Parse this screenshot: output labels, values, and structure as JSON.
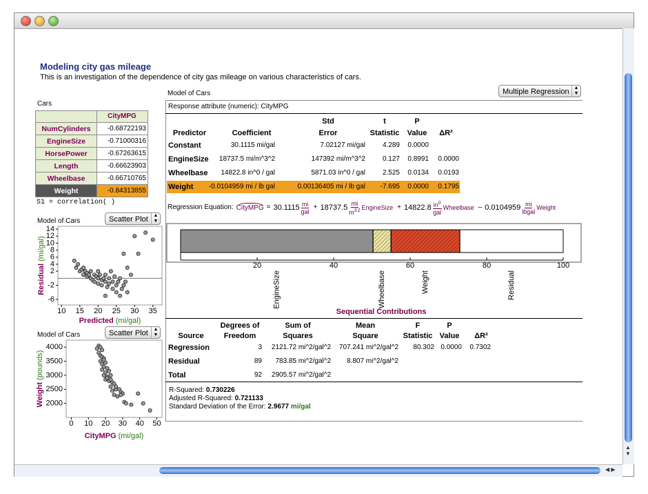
{
  "header": {
    "title": "Modeling city gas mileage",
    "subtitle": "This is an investigation of the dependence of city gas mileage on various characteristics of cars."
  },
  "cars_table": {
    "title": "Cars",
    "column": "CityMPG",
    "selected_row": 5,
    "rows": [
      [
        "NumCylinders",
        -0.68722193
      ],
      [
        "EngineSize",
        -0.71000316
      ],
      [
        "HorsePower",
        -0.67263615
      ],
      [
        "Length",
        -0.66623903
      ],
      [
        "Wheelbase",
        -0.66710765
      ],
      [
        "Weight",
        -0.84313855
      ]
    ],
    "formula": "S1 = correlation(  )"
  },
  "residual_plot": {
    "type": "scatter",
    "title": "Model of Cars",
    "button": "Scatter Plot",
    "x_label": "Predicted",
    "x_unit": "(mi/gal)",
    "y_label": "Residual",
    "y_unit": "(mi/gal)",
    "xlim": [
      9,
      37.5
    ],
    "ylim": [
      -7.6,
      14.8
    ],
    "xticks": [
      10,
      15,
      20,
      25,
      30,
      35
    ],
    "yticks": [
      14,
      12,
      10,
      8,
      6,
      4,
      2,
      -2,
      -6
    ],
    "color": "#9a9a9a",
    "x": [
      13.5,
      14,
      14.5,
      15,
      15.5,
      16,
      16,
      16.5,
      17,
      17,
      17.5,
      18,
      18,
      18.5,
      19,
      19,
      19.5,
      20,
      20,
      20.5,
      21,
      21,
      21.5,
      22,
      22,
      22.5,
      23,
      23,
      23.5,
      24,
      24,
      24.5,
      25,
      25,
      25.5,
      26,
      26,
      26.5,
      27,
      27,
      28,
      28,
      29,
      30,
      31,
      33,
      35,
      22,
      27.5,
      20
    ],
    "y": [
      5,
      3,
      4,
      2,
      2.5,
      3,
      1,
      2,
      1.5,
      0.5,
      1,
      2,
      0,
      -0.5,
      1,
      -1,
      0.5,
      0,
      -1.5,
      1,
      -0.5,
      -2,
      0,
      1,
      -1,
      -2.5,
      0,
      -1.5,
      2,
      -1,
      -3,
      0.5,
      -2,
      -4,
      -1,
      -5,
      0,
      -3,
      7,
      -2,
      3,
      -4,
      1,
      12,
      7,
      13,
      11,
      -5,
      -1,
      2
    ]
  },
  "weight_plot": {
    "type": "scatter",
    "title": "Model of Cars",
    "button": "Scatter Plot",
    "x_label": "CityMPG",
    "x_unit": "(mi/gal)",
    "y_label": "Weight",
    "y_unit": "(pounds)",
    "xlim": [
      -3,
      53
    ],
    "ylim": [
      1500,
      4250
    ],
    "xticks": [
      0,
      10,
      20,
      30,
      40,
      50
    ],
    "yticks": [
      4000,
      3500,
      3000,
      2500,
      2000
    ],
    "color": "#9a9a9a",
    "x": [
      16,
      17,
      15,
      18,
      16,
      17,
      18,
      19,
      17,
      18,
      20,
      19,
      21,
      18,
      20,
      22,
      19,
      21,
      23,
      20,
      22,
      24,
      23,
      25,
      21,
      26,
      24,
      28,
      25,
      29,
      30,
      27,
      31,
      32,
      29,
      35,
      39,
      42,
      46,
      23,
      26,
      19
    ],
    "y": [
      4050,
      4000,
      3950,
      3900,
      3800,
      3700,
      3650,
      3600,
      3500,
      3400,
      3450,
      3300,
      3250,
      3200,
      3100,
      3150,
      3000,
      2950,
      3000,
      2850,
      2800,
      2750,
      2600,
      2700,
      2900,
      2500,
      2450,
      2500,
      2300,
      2400,
      2350,
      2250,
      2050,
      2000,
      2300,
      1950,
      2350,
      2000,
      1750,
      2850,
      2600,
      3550
    ]
  },
  "model": {
    "title": "Model of Cars",
    "button": "Multiple Regression",
    "response": "Response attribute (numeric): CityMPG",
    "coefficients": {
      "headers": [
        {
          "bottom": "Predictor"
        },
        {
          "bottom": "Coefficient"
        },
        {
          "top": "Std",
          "bottom": "Error"
        },
        {
          "top": "t",
          "bottom": "Statistic"
        },
        {
          "top": "P",
          "bottom": "Value"
        },
        {
          "bottom": "ΔR²"
        }
      ],
      "rows": [
        [
          "Constant",
          "30.1115 mi/gal",
          "7.02127 mi/gal",
          "4.289",
          "0.0000",
          null
        ],
        [
          "EngineSize",
          "18737.5 mi/m^3^2",
          "147392 mi/m^3^2",
          "0.127",
          "0.8991",
          "0.0000"
        ],
        [
          "Wheelbase",
          "14822.8 in^0 / gal",
          "5871.03 in^0 / gal",
          "2.525",
          "0.0134",
          "0.0193"
        ],
        [
          "Weight",
          "-0.0104959 mi / lb gal",
          "0.00136405 mi / lb gal",
          "-7.695",
          "0.0000",
          "0.1795"
        ]
      ],
      "highlight_row": 3
    },
    "equation": {
      "label": "Regression Equation:",
      "response": "CityMPG",
      "equals": "=",
      "terms": [
        {
          "coef": "30.1115",
          "num": "mi",
          "den": "gal"
        },
        {
          "sign": "+",
          "coef": "18737.5",
          "num": "mi",
          "den": "m",
          "den_sup": "3",
          "den_sup2": "2",
          "var": "EngineSize"
        },
        {
          "sign": "+",
          "coef": "14822.8",
          "num": "in",
          "num_sup": "0",
          "den": "gal",
          "var": "Wheelbase"
        },
        {
          "sign": "–",
          "coef": "0.0104959",
          "num": "mi",
          "den": "lbgal",
          "var": "Weight"
        }
      ]
    },
    "contributions": {
      "type": "stacked-bar",
      "title": "Sequential Contributions",
      "xlim": [
        0,
        100
      ],
      "xticks": [
        20,
        40,
        60,
        80,
        100
      ],
      "segments": [
        {
          "name": "EngineSize",
          "color": "#8e8e8e",
          "value": 50.3
        },
        {
          "name": "Wheelbase",
          "color": "#ece4a4",
          "value": 4.7,
          "hatched": true
        },
        {
          "name": "Weight",
          "color": "#d8482a",
          "value": 18,
          "hatched": true
        },
        {
          "name": "Residual",
          "color": "#ffffff",
          "value": 27
        }
      ]
    },
    "anova": {
      "headers": [
        {
          "bottom": "Source"
        },
        {
          "top": "Degrees of",
          "bottom": "Freedom"
        },
        {
          "top": "Sum of",
          "bottom": "Squares"
        },
        {
          "top": "Mean",
          "bottom": "Square"
        },
        {
          "top": "F",
          "bottom": "Statistic"
        },
        {
          "top": "P",
          "bottom": "Value"
        },
        {
          "bottom": "ΔR²"
        }
      ],
      "rows": [
        [
          "Regression",
          "3",
          "2121.72 mi^2/gal^2",
          "707.241 mi^2/gal^2",
          "80.302",
          "0.0000",
          "0.7302"
        ],
        [
          "Residual",
          "89",
          "783.85 mi^2/gal^2",
          "8.807 mi^2/gal^2",
          null,
          null,
          null
        ],
        [
          "Total",
          "92",
          "2905.57 mi^2/gal^2",
          null,
          null,
          null,
          null
        ]
      ]
    },
    "summary": {
      "r2_label": "R-Squared:",
      "r2": "0.730226",
      "adj_label": "Adjusted R-Squared:",
      "adj": "0.721133",
      "sd_label": "Standard Deviation of the Error:",
      "sd": "2.9677",
      "sd_unit": "mi/gal"
    }
  }
}
